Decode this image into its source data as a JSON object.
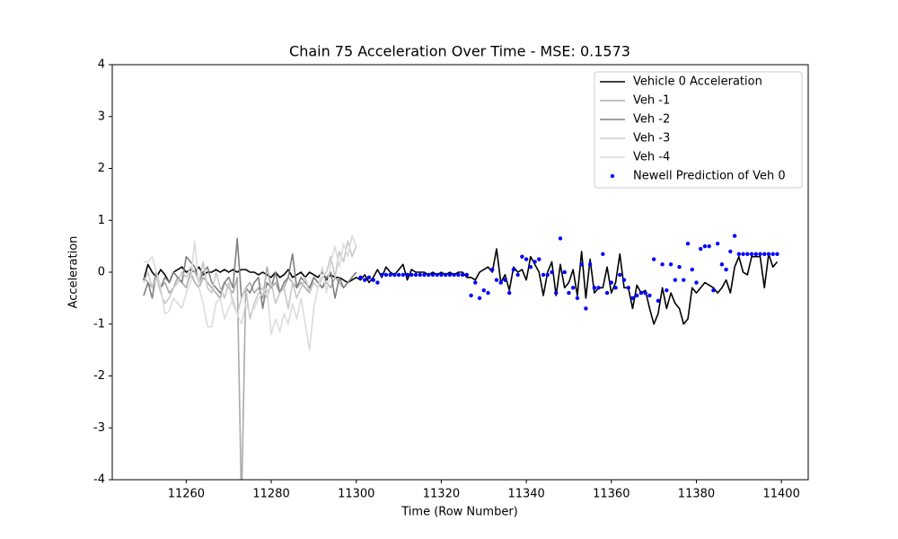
{
  "chart_data": {
    "type": "line",
    "title": "Chain 75 Acceleration Over Time - MSE: 0.1573",
    "x_label": "Time (Row Number)",
    "y_label": "Acceleration",
    "xlim": [
      11242.6,
      11406.3
    ],
    "ylim": [
      -4,
      4
    ],
    "xticks": [
      11260,
      11280,
      11300,
      11320,
      11340,
      11360,
      11380,
      11400
    ],
    "yticks": [
      -4,
      -3,
      -2,
      -1,
      0,
      1,
      2,
      3,
      4
    ],
    "grid": false,
    "legend": "upper right",
    "x": [
      11250,
      11251,
      11252,
      11253,
      11254,
      11255,
      11256,
      11257,
      11258,
      11259,
      11260,
      11261,
      11262,
      11263,
      11264,
      11265,
      11266,
      11267,
      11268,
      11269,
      11270,
      11271,
      11272,
      11273,
      11274,
      11275,
      11276,
      11277,
      11278,
      11279,
      11280,
      11281,
      11282,
      11283,
      11284,
      11285,
      11286,
      11287,
      11288,
      11289,
      11290,
      11291,
      11292,
      11293,
      11294,
      11295,
      11296,
      11297,
      11298,
      11299,
      11300,
      11301,
      11302,
      11303,
      11304,
      11305,
      11306,
      11307,
      11308,
      11309,
      11310,
      11311,
      11312,
      11313,
      11314,
      11315,
      11316,
      11317,
      11318,
      11319,
      11320,
      11321,
      11322,
      11323,
      11324,
      11325,
      11326,
      11327,
      11328,
      11329,
      11330,
      11331,
      11332,
      11333,
      11334,
      11335,
      11336,
      11337,
      11338,
      11339,
      11340,
      11341,
      11342,
      11343,
      11344,
      11345,
      11346,
      11347,
      11348,
      11349,
      11350,
      11351,
      11352,
      11353,
      11354,
      11355,
      11356,
      11357,
      11358,
      11359,
      11360,
      11361,
      11362,
      11363,
      11364,
      11365,
      11366,
      11367,
      11368,
      11369,
      11370,
      11371,
      11372,
      11373,
      11374,
      11375,
      11376,
      11377,
      11378,
      11379,
      11380,
      11381,
      11382,
      11383,
      11384,
      11385,
      11386,
      11387,
      11388,
      11389,
      11390,
      11391,
      11392,
      11393,
      11394,
      11395,
      11396,
      11397,
      11398,
      11399
    ],
    "series": [
      {
        "name": "Vehicle 0 Acceleration",
        "color": "#000000",
        "style": "line",
        "values": [
          -0.15,
          0.15,
          0.0,
          -0.1,
          0.05,
          -0.05,
          -0.2,
          0.0,
          0.05,
          0.1,
          0.0,
          0.05,
          0.0,
          0.1,
          -0.05,
          0.0,
          0.0,
          0.05,
          0.0,
          0.05,
          0.0,
          0.05,
          0.0,
          0.05,
          0.05,
          0.0,
          0.0,
          -0.05,
          0.0,
          -0.05,
          -0.1,
          0.0,
          -0.1,
          -0.05,
          0.05,
          -0.1,
          -0.05,
          0.0,
          -0.1,
          0.0,
          -0.05,
          -0.1,
          0.0,
          -0.15,
          -0.05,
          -0.1,
          -0.1,
          -0.15,
          -0.2,
          -0.15,
          -0.1,
          -0.15,
          -0.05,
          -0.2,
          -0.1,
          0.05,
          -0.1,
          0.1,
          0.0,
          -0.05,
          0.05,
          0.15,
          -0.15,
          0.05,
          0.0,
          0.0,
          0.0,
          -0.05,
          0.0,
          -0.05,
          0.0,
          -0.05,
          0.0,
          -0.05,
          0.0,
          0.0,
          -0.1,
          -0.1,
          -0.15,
          0.0,
          0.05,
          0.1,
          0.0,
          0.45,
          -0.2,
          -0.05,
          -0.35,
          0.1,
          0.0,
          0.05,
          -0.15,
          0.3,
          0.15,
          0.0,
          -0.45,
          0.0,
          0.2,
          -0.45,
          0.15,
          -0.3,
          -0.2,
          0.05,
          -0.45,
          0.4,
          -0.5,
          0.25,
          -0.4,
          -0.3,
          -0.3,
          0.1,
          -0.4,
          -0.2,
          0.35,
          -0.3,
          -0.3,
          -0.7,
          -0.25,
          -0.4,
          -0.35,
          -0.7,
          -1.0,
          -0.8,
          -0.3,
          -0.7,
          -0.4,
          -0.6,
          -0.7,
          -1.0,
          -0.9,
          -0.3,
          -0.4,
          -0.3,
          -0.2,
          -0.25,
          -0.3,
          -0.4,
          -0.3,
          -0.15,
          -0.4,
          0.1,
          0.3,
          0.0,
          -0.05,
          0.3,
          0.3,
          0.3,
          -0.3,
          0.35,
          0.1,
          0.2
        ]
      },
      {
        "name": "Veh -1",
        "color": "#aaaaaa",
        "style": "line",
        "values": [
          -0.1,
          -0.2,
          -0.3,
          0.0,
          -0.3,
          -0.2,
          -0.4,
          -0.3,
          -0.1,
          -0.2,
          -0.3,
          0.0,
          -0.2,
          -0.3,
          -0.1,
          -0.2,
          -0.3,
          -0.4,
          -0.5,
          -0.2,
          -0.3,
          -0.4,
          -0.1,
          -4.5,
          -0.3,
          -0.2,
          -0.4,
          -0.3,
          -0.5,
          0.1,
          -0.3,
          -0.2,
          -0.4,
          -0.3,
          -0.1,
          -0.2,
          -0.3,
          -0.2,
          -0.3,
          -0.4,
          -0.1,
          -0.2,
          -0.3,
          -0.2,
          -0.3,
          -0.1,
          -0.2,
          -0.3,
          -0.2,
          -0.1,
          0.0,
          null,
          null,
          null,
          null,
          null,
          null,
          null,
          null,
          null,
          null,
          null,
          null,
          null,
          null,
          null,
          null,
          null,
          null,
          null,
          null,
          null,
          null,
          null,
          null,
          null,
          null,
          null,
          null,
          null,
          null,
          null,
          null,
          null,
          null,
          null,
          null,
          null,
          null,
          null,
          null,
          null,
          null,
          null,
          null,
          null,
          null,
          null,
          null,
          null,
          null,
          null,
          null,
          null,
          null,
          null,
          null,
          null,
          null,
          null,
          null,
          null,
          null,
          null,
          null,
          null,
          null,
          null,
          null,
          null,
          null,
          null,
          null,
          null,
          null,
          null,
          null,
          null,
          null,
          null,
          null,
          null,
          null,
          null,
          null,
          null,
          null,
          null,
          null,
          null,
          null,
          null,
          null,
          null,
          null,
          null,
          null,
          null,
          null,
          null
        ]
      },
      {
        "name": "Veh -2",
        "color": "#808080",
        "style": "line",
        "values": [
          -0.45,
          -0.2,
          -0.5,
          0.0,
          -0.3,
          -0.1,
          -0.2,
          0.0,
          -0.1,
          -0.2,
          0.3,
          0.2,
          0.1,
          -0.2,
          0.0,
          0.1,
          -0.2,
          -0.3,
          -0.4,
          -0.2,
          -0.1,
          -0.3,
          0.65,
          -0.5,
          -0.3,
          -0.4,
          -0.2,
          -0.1,
          -0.7,
          -0.2,
          -0.3,
          0.0,
          -0.4,
          -0.2,
          -0.1,
          0.35,
          -0.3,
          -0.1,
          -0.2,
          -0.3,
          -0.1,
          -0.2,
          -0.3,
          -0.1,
          0.0,
          -0.5,
          -0.1,
          -0.3,
          -0.2,
          -0.1,
          0.0,
          null,
          null,
          null,
          null,
          null,
          null,
          null,
          null,
          null,
          null,
          null,
          null,
          null,
          null,
          null,
          null,
          null,
          null,
          null,
          null,
          null,
          null,
          null,
          null,
          null,
          null,
          null,
          null,
          null,
          null,
          null,
          null,
          null,
          null,
          null,
          null,
          null,
          null,
          null,
          null,
          null,
          null,
          null,
          null,
          null,
          null,
          null,
          null,
          null,
          null,
          null,
          null,
          null,
          null,
          null,
          null,
          null,
          null,
          null,
          null,
          null,
          null,
          null,
          null,
          null,
          null,
          null,
          null,
          null,
          null,
          null,
          null,
          null,
          null,
          null,
          null,
          null,
          null,
          null,
          null,
          null,
          null,
          null,
          null,
          null,
          null,
          null,
          null,
          null,
          null,
          null,
          null,
          null,
          null,
          null,
          null,
          null,
          null,
          null
        ]
      },
      {
        "name": "Veh -3",
        "color": "#c8c8c8",
        "style": "line",
        "values": [
          -0.2,
          0.0,
          -0.3,
          -0.1,
          -0.4,
          -0.6,
          -0.5,
          -0.3,
          -0.2,
          0.0,
          -0.1,
          0.1,
          0.0,
          -0.2,
          0.2,
          -0.3,
          -0.4,
          0.0,
          -0.3,
          -0.5,
          -0.2,
          -0.6,
          -0.8,
          -0.5,
          -0.3,
          -0.9,
          -0.6,
          -0.4,
          -0.3,
          -0.5,
          -0.2,
          -0.6,
          -0.4,
          -0.3,
          -0.7,
          -0.2,
          -0.5,
          -0.3,
          -0.1,
          -0.4,
          -0.2,
          -0.3,
          -0.1,
          0.0,
          0.3,
          -0.1,
          0.4,
          0.2,
          0.6,
          0.3,
          0.5,
          null,
          null,
          null,
          null,
          null,
          null,
          null,
          null,
          null,
          null,
          null,
          null,
          null,
          null,
          null,
          null,
          null,
          null,
          null,
          null,
          null,
          null,
          null,
          null,
          null,
          null,
          null,
          null,
          null,
          null,
          null,
          null,
          null,
          null,
          null,
          null,
          null,
          null,
          null,
          null,
          null,
          null,
          null,
          null,
          null,
          null,
          null,
          null,
          null,
          null,
          null,
          null,
          null,
          null,
          null,
          null,
          null,
          null,
          null,
          null,
          null,
          null,
          null,
          null,
          null,
          null,
          null,
          null,
          null,
          null,
          null,
          null,
          null,
          null,
          null,
          null,
          null,
          null,
          null,
          null,
          null,
          null,
          null,
          null,
          null,
          null,
          null,
          null,
          null,
          null,
          null,
          null,
          null,
          null,
          null,
          null,
          null,
          null,
          null
        ]
      },
      {
        "name": "Veh -4",
        "color": "#dcdcdc",
        "style": "line",
        "values": [
          0.2,
          0.2,
          0.3,
          0.0,
          -0.3,
          -0.8,
          -0.75,
          -0.5,
          -0.6,
          -0.7,
          -0.4,
          -0.2,
          0.6,
          -0.3,
          -0.6,
          -1.05,
          -1.05,
          -0.6,
          -0.5,
          -0.9,
          -0.7,
          -0.5,
          -0.8,
          -1.0,
          -0.6,
          -0.8,
          -0.7,
          -0.5,
          -0.4,
          -0.3,
          -1.2,
          -0.9,
          -1.15,
          -0.8,
          -1.0,
          -0.6,
          -0.9,
          -0.5,
          -1.0,
          -1.5,
          -0.7,
          -0.3,
          0.1,
          -0.4,
          0.2,
          0.5,
          0.1,
          0.55,
          0.3,
          0.7,
          0.5,
          null,
          null,
          null,
          null,
          null,
          null,
          null,
          null,
          null,
          null,
          null,
          null,
          null,
          null,
          null,
          null,
          null,
          null,
          null,
          null,
          null,
          null,
          null,
          null,
          null,
          null,
          null,
          null,
          null,
          null,
          null,
          null,
          null,
          null,
          null,
          null,
          null,
          null,
          null,
          null,
          null,
          null,
          null,
          null,
          null,
          null,
          null,
          null,
          null,
          null,
          null,
          null,
          null,
          null,
          null,
          null,
          null,
          null,
          null,
          null,
          null,
          null,
          null,
          null,
          null,
          null,
          null,
          null,
          null,
          null,
          null,
          null,
          null,
          null,
          null,
          null,
          null,
          null,
          null,
          null,
          null,
          null,
          null,
          null,
          null,
          null,
          null,
          null,
          null,
          null,
          null,
          null,
          null,
          null,
          null,
          null,
          null,
          null,
          null
        ]
      },
      {
        "name": "Newell Prediction of Veh 0",
        "color": "#0000ff",
        "style": "dots",
        "values": [
          null,
          null,
          null,
          null,
          null,
          null,
          null,
          null,
          null,
          null,
          null,
          null,
          null,
          null,
          null,
          null,
          null,
          null,
          null,
          null,
          null,
          null,
          null,
          null,
          null,
          null,
          null,
          null,
          null,
          null,
          null,
          null,
          null,
          null,
          null,
          null,
          null,
          null,
          null,
          null,
          null,
          null,
          null,
          null,
          null,
          null,
          null,
          null,
          null,
          null,
          null,
          -0.1,
          -0.15,
          -0.1,
          -0.15,
          -0.2,
          -0.05,
          -0.05,
          -0.05,
          -0.05,
          -0.05,
          -0.05,
          -0.05,
          -0.05,
          -0.05,
          -0.05,
          -0.05,
          -0.05,
          -0.05,
          -0.05,
          -0.05,
          -0.05,
          -0.05,
          -0.05,
          -0.05,
          -0.05,
          -0.05,
          -0.45,
          -0.2,
          -0.5,
          -0.35,
          -0.4,
          0.05,
          -0.15,
          -0.2,
          -0.15,
          -0.4,
          0.05,
          -0.05,
          0.3,
          0.25,
          0.1,
          0.2,
          0.25,
          -0.05,
          -0.05,
          0.0,
          -0.4,
          0.65,
          0.0,
          -0.4,
          -0.3,
          -0.5,
          0.15,
          -0.7,
          0.15,
          -0.3,
          -0.3,
          0.35,
          -0.4,
          -0.2,
          -0.3,
          -0.05,
          -0.15,
          -0.3,
          -0.5,
          -0.45,
          -0.4,
          -0.4,
          -0.45,
          0.25,
          -0.55,
          0.15,
          -0.35,
          0.15,
          -0.15,
          0.1,
          -0.15,
          0.55,
          0.05,
          -0.2,
          0.45,
          0.5,
          0.5,
          -0.35,
          0.55,
          0.15,
          0.05,
          0.4,
          0.7,
          0.35,
          0.35,
          0.35,
          0.35,
          0.35,
          0.35,
          0.35,
          0.35,
          0.35,
          0.35
        ]
      }
    ]
  }
}
